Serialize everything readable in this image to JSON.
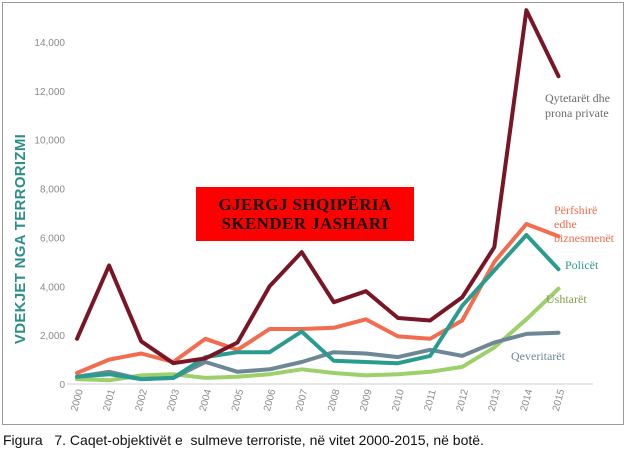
{
  "chart_data": {
    "type": "line",
    "ylabel": "VDEKJET NGA TERRORIZMI",
    "xlabel": "",
    "ylim": [
      0,
      15000
    ],
    "yticks": [
      0,
      2000,
      4000,
      6000,
      8000,
      10000,
      12000,
      14000
    ],
    "ytick_labels": [
      "0",
      "2,000",
      "4,000",
      "6,000",
      "8,000",
      "10,000",
      "12,000",
      "14,000"
    ],
    "x": [
      "2000",
      "2001",
      "2002",
      "2003",
      "2004",
      "2005",
      "2006",
      "2007",
      "2008",
      "2009",
      "2010",
      "2011",
      "2012",
      "2013",
      "2014",
      "2015"
    ],
    "grid": false,
    "series": [
      {
        "name": "Qytetarët dhe prona private",
        "color": "#7a1526",
        "values": [
          1850,
          4850,
          1750,
          850,
          1050,
          1700,
          4000,
          5400,
          3350,
          3800,
          2700,
          2600,
          3550,
          5600,
          15300,
          12600
        ]
      },
      {
        "name": "Përfshirë edhe biznesmenët",
        "color": "#f26d50",
        "values": [
          450,
          1000,
          1250,
          900,
          1850,
          1400,
          2250,
          2250,
          2300,
          2650,
          1950,
          1850,
          2600,
          5000,
          6550,
          6050
        ]
      },
      {
        "name": "Policët",
        "color": "#2a9c8f",
        "values": [
          300,
          400,
          200,
          250,
          1100,
          1300,
          1300,
          2150,
          950,
          900,
          850,
          1150,
          3200,
          4650,
          6100,
          4700
        ]
      },
      {
        "name": "Ushtarët",
        "color": "#9bd06a",
        "values": [
          200,
          150,
          350,
          400,
          250,
          300,
          400,
          600,
          450,
          350,
          400,
          500,
          700,
          1500,
          2650,
          3900
        ]
      },
      {
        "name": "Qeveritarët",
        "color": "#6e8797",
        "values": [
          300,
          500,
          200,
          250,
          900,
          500,
          600,
          900,
          1300,
          1250,
          1100,
          1400,
          1150,
          1700,
          2050,
          2100
        ]
      }
    ],
    "series_labels": {
      "s0": [
        "Qytetarët dhe",
        "prona private"
      ],
      "s1": [
        "Përfshirë",
        "edhe",
        "biznesmenët"
      ],
      "s2": [
        "Policët"
      ],
      "s3": [
        "Ushtarët"
      ],
      "s4": [
        "Qeveritarët"
      ]
    }
  },
  "banner": {
    "line1": "GJERGJ SHQIPËRIA",
    "line2": "SKENDER JASHARI"
  },
  "caption": "Figura   7. Caqet-objektivët e  sulmeve terroriste, në vitet 2000-2015, në botë."
}
